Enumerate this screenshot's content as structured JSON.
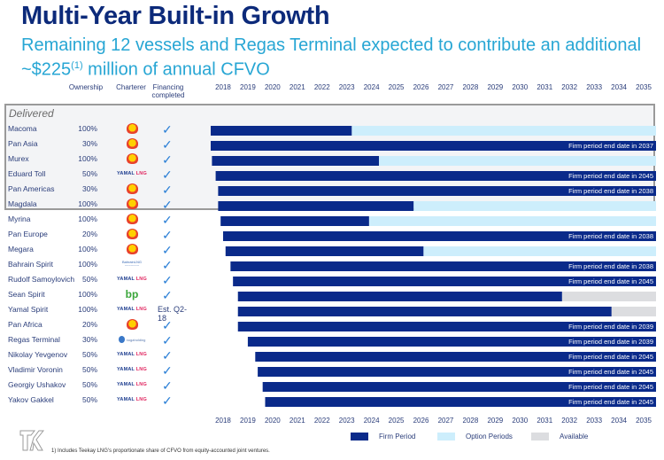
{
  "header": {
    "title": "Multi-Year Built-in Growth",
    "subtitle_pre": "Remaining 12 vessels and Regas Terminal expected to contribute an additional ~$225",
    "subtitle_sup": "(1)",
    "subtitle_post": " million of annual CFVO"
  },
  "columns": {
    "ownership": "Ownership",
    "charterer": "Charterer",
    "financing_line1": "Financing",
    "financing_line2": "completed"
  },
  "group_label": "Delivered",
  "colors": {
    "firm": "#0a2a8a",
    "option": "#cdeefc",
    "available": "#dcdde0",
    "title": "#0c2a7a",
    "subtitle": "#27a6d4"
  },
  "legend": {
    "firm": "Firm Period",
    "option": "Option Periods",
    "available": "Available"
  },
  "footnote": "1)    Includes Teekay LNG's proportionate share of CFVO from equity-accounted joint ventures.",
  "logo_text": "TK",
  "chart_data": {
    "type": "gantt",
    "title": "Multi-Year Built-in Growth",
    "x_ticks": [
      "2018",
      "2019",
      "2020",
      "2021",
      "2022",
      "2023",
      "2024",
      "2025",
      "2026",
      "2027",
      "2028",
      "2029",
      "2030",
      "2031",
      "2032",
      "2033",
      "2034",
      "2035"
    ],
    "x_range": [
      2018,
      2036
    ],
    "legend_position": "bottom",
    "rows": [
      {
        "name": "Macoma",
        "ownership": "100%",
        "charterer": "Shell",
        "financing": "check",
        "delivered": true,
        "start": 2018.0,
        "firm_end": 2023.7,
        "after": "option",
        "label": ""
      },
      {
        "name": "Pan Asia",
        "ownership": "30%",
        "charterer": "Shell",
        "financing": "check",
        "delivered": true,
        "start": 2018.0,
        "firm_end": 2036,
        "after": "none",
        "label": "Firm period end date in 2037"
      },
      {
        "name": "Murex",
        "ownership": "100%",
        "charterer": "Shell",
        "financing": "check",
        "delivered": true,
        "start": 2018.05,
        "firm_end": 2024.8,
        "after": "option",
        "label": ""
      },
      {
        "name": "Eduard Toll",
        "ownership": "50%",
        "charterer": "Yamal LNG",
        "financing": "check",
        "delivered": true,
        "start": 2018.2,
        "firm_end": 2036,
        "after": "none",
        "label": "Firm period end date in 2045"
      },
      {
        "name": "Pan Americas",
        "ownership": "30%",
        "charterer": "Shell",
        "financing": "check",
        "delivered": true,
        "start": 2018.3,
        "firm_end": 2036,
        "after": "none",
        "label": "Firm period end date in 2038"
      },
      {
        "name": "Magdala",
        "ownership": "100%",
        "charterer": "Shell",
        "financing": "check",
        "delivered": true,
        "start": 2018.3,
        "firm_end": 2026.2,
        "after": "option",
        "label": ""
      },
      {
        "name": "Myrina",
        "ownership": "100%",
        "charterer": "Shell",
        "financing": "check",
        "delivered": false,
        "start": 2018.4,
        "firm_end": 2024.4,
        "after": "option",
        "label": ""
      },
      {
        "name": "Pan Europe",
        "ownership": "20%",
        "charterer": "Shell",
        "financing": "check",
        "delivered": false,
        "start": 2018.5,
        "firm_end": 2036,
        "after": "none",
        "label": "Firm period end date in 2038"
      },
      {
        "name": "Megara",
        "ownership": "100%",
        "charterer": "Shell",
        "financing": "check",
        "delivered": false,
        "start": 2018.6,
        "firm_end": 2026.6,
        "after": "option",
        "label": ""
      },
      {
        "name": "Bahrain Spirit",
        "ownership": "100%",
        "charterer": "Bahrain LNG",
        "financing": "check",
        "delivered": false,
        "start": 2018.8,
        "firm_end": 2036,
        "after": "none",
        "label": "Firm period end date in 2038"
      },
      {
        "name": "Rudolf Samoylovich",
        "ownership": "50%",
        "charterer": "Yamal LNG",
        "financing": "check",
        "delivered": false,
        "start": 2018.9,
        "firm_end": 2036,
        "after": "none",
        "label": "Firm period end date in 2045"
      },
      {
        "name": "Sean Spirit",
        "ownership": "100%",
        "charterer": "BP",
        "financing": "check",
        "delivered": false,
        "start": 2019.1,
        "firm_end": 2032.2,
        "after": "available",
        "label": ""
      },
      {
        "name": "Yamal Spirit",
        "ownership": "100%",
        "charterer": "Yamal LNG",
        "financing": "Est. Q2-18",
        "delivered": false,
        "start": 2019.1,
        "firm_end": 2034.2,
        "after": "available",
        "label": ""
      },
      {
        "name": "Pan Africa",
        "ownership": "20%",
        "charterer": "Shell",
        "financing": "check",
        "delivered": false,
        "start": 2019.1,
        "firm_end": 2036,
        "after": "none",
        "label": "Firm period end date in 2039"
      },
      {
        "name": "Regas Terminal",
        "ownership": "30%",
        "charterer": "nogaholding",
        "financing": "check",
        "delivered": false,
        "start": 2019.5,
        "firm_end": 2036,
        "after": "none",
        "label": "Firm period end date in 2039"
      },
      {
        "name": "Nikolay Yevgenov",
        "ownership": "50%",
        "charterer": "Yamal LNG",
        "financing": "check",
        "delivered": false,
        "start": 2019.8,
        "firm_end": 2036,
        "after": "none",
        "label": "Firm period end date in 2045"
      },
      {
        "name": "Vladimir Voronin",
        "ownership": "50%",
        "charterer": "Yamal LNG",
        "financing": "check",
        "delivered": false,
        "start": 2019.9,
        "firm_end": 2036,
        "after": "none",
        "label": "Firm period end date in 2045"
      },
      {
        "name": "Georgiy Ushakov",
        "ownership": "50%",
        "charterer": "Yamal LNG",
        "financing": "check",
        "delivered": false,
        "start": 2020.1,
        "firm_end": 2036,
        "after": "none",
        "label": "Firm period end date in 2045"
      },
      {
        "name": "Yakov Gakkel",
        "ownership": "50%",
        "charterer": "Yamal LNG",
        "financing": "check",
        "delivered": false,
        "start": 2020.2,
        "firm_end": 2036,
        "after": "none",
        "label": "Firm period end date in 2045"
      }
    ]
  }
}
